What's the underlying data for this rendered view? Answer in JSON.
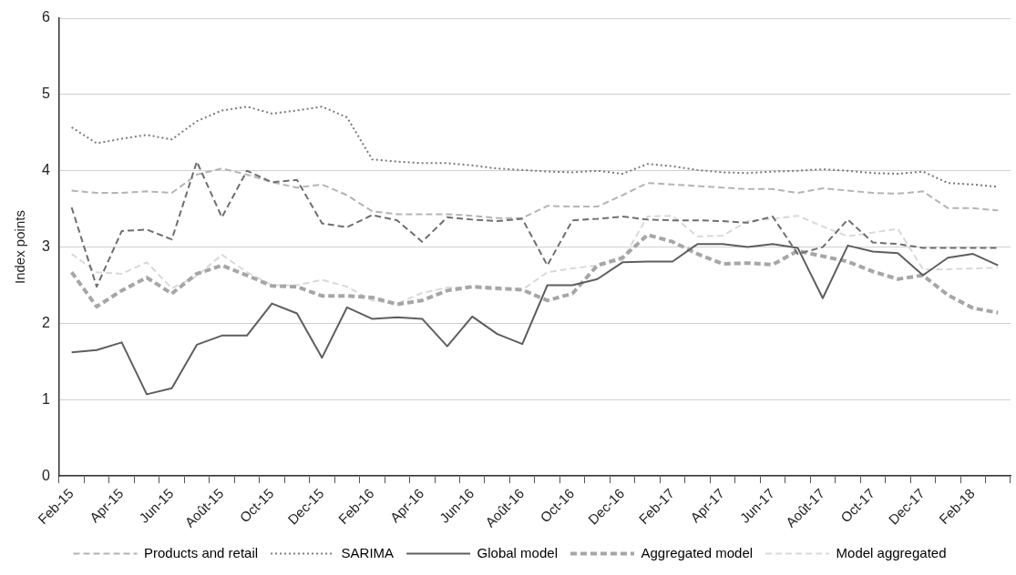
{
  "chart_data": {
    "type": "line",
    "ylabel": "Index points",
    "categories": [
      "Feb-15",
      null,
      "Apr-15",
      null,
      "Jun-15",
      null,
      "Août-15",
      null,
      "Oct-15",
      null,
      "Dec-15",
      null,
      "Feb-16",
      null,
      "Apr-16",
      null,
      "Jun-16",
      null,
      "Août-16",
      null,
      "Oct-16",
      null,
      "Dec-16",
      null,
      "Feb-17",
      null,
      "Apr-17",
      null,
      "Jun-17",
      null,
      "Août-17",
      null,
      "Oct-17",
      null,
      "Dec-17",
      null,
      "Feb-18",
      null
    ],
    "ylim": [
      0,
      6
    ],
    "yticks": [
      0,
      1,
      2,
      3,
      4,
      5,
      6
    ],
    "grid": "y",
    "legend": "bottom",
    "marker": "none",
    "series": [
      {
        "color": "#6e6e6e",
        "line_style": "dashed",
        "values": [
          3.52,
          2.48,
          3.21,
          3.23,
          3.1,
          4.12,
          3.39,
          4.0,
          3.85,
          3.88,
          3.31,
          3.26,
          3.42,
          3.35,
          3.07,
          3.39,
          3.36,
          3.34,
          3.37,
          2.76,
          3.35,
          3.37,
          3.4,
          3.36,
          3.35,
          3.35,
          3.34,
          3.32,
          3.4,
          2.91,
          3.0,
          3.36,
          3.06,
          3.04,
          2.99,
          2.99,
          2.99,
          2.99
        ]
      },
      {
        "name": "Products and retail",
        "color": "#b4b4b4",
        "line_style": "dashed",
        "values": [
          3.74,
          3.71,
          3.71,
          3.73,
          3.71,
          3.95,
          4.03,
          3.95,
          3.85,
          3.78,
          3.82,
          3.68,
          3.47,
          3.43,
          3.43,
          3.43,
          3.41,
          3.38,
          3.38,
          3.54,
          3.53,
          3.53,
          3.68,
          3.84,
          3.82,
          3.8,
          3.78,
          3.76,
          3.76,
          3.71,
          3.77,
          3.74,
          3.71,
          3.7,
          3.73,
          3.51,
          3.51,
          3.48
        ]
      },
      {
        "name": "SARIMA",
        "color": "#7a7a7a",
        "line_style": "dotted",
        "values": [
          4.57,
          4.36,
          4.42,
          4.47,
          4.41,
          4.65,
          4.79,
          4.84,
          4.75,
          4.79,
          4.84,
          4.7,
          4.15,
          4.12,
          4.1,
          4.1,
          4.07,
          4.03,
          4.01,
          3.99,
          3.98,
          4.0,
          3.96,
          4.09,
          4.06,
          4.01,
          3.98,
          3.97,
          3.99,
          4.0,
          4.02,
          4.0,
          3.97,
          3.96,
          3.99,
          3.84,
          3.82,
          3.79
        ]
      },
      {
        "name": "Global model",
        "color": "#5e5e5e",
        "line_style": "solid",
        "values": [
          1.62,
          1.65,
          1.75,
          1.07,
          1.15,
          1.72,
          1.84,
          1.84,
          2.26,
          2.13,
          1.55,
          2.21,
          2.06,
          2.08,
          2.06,
          1.7,
          2.09,
          1.86,
          1.73,
          2.5,
          2.5,
          2.58,
          2.8,
          2.81,
          2.81,
          3.04,
          3.04,
          3.0,
          3.04,
          2.99,
          2.33,
          3.02,
          2.94,
          2.92,
          2.63,
          2.86,
          2.91,
          2.76
        ]
      },
      {
        "name": "Aggregated model",
        "color": "#a6a6a6",
        "line_style": "dashed",
        "values": [
          2.67,
          2.22,
          2.43,
          2.6,
          2.39,
          2.65,
          2.76,
          2.63,
          2.49,
          2.48,
          2.36,
          2.36,
          2.34,
          2.25,
          2.3,
          2.43,
          2.48,
          2.46,
          2.44,
          2.3,
          2.39,
          2.76,
          2.86,
          3.16,
          3.07,
          2.91,
          2.78,
          2.79,
          2.77,
          2.95,
          2.88,
          2.81,
          2.68,
          2.58,
          2.63,
          2.37,
          2.2,
          2.14
        ]
      },
      {
        "name": "Model aggregated",
        "color": "#d9d9d9",
        "line_style": "dashed",
        "values": [
          2.91,
          2.67,
          2.65,
          2.8,
          2.46,
          2.62,
          2.9,
          2.67,
          2.5,
          2.5,
          2.57,
          2.48,
          2.3,
          2.26,
          2.4,
          2.47,
          2.47,
          2.44,
          2.44,
          2.67,
          2.72,
          2.76,
          2.83,
          3.4,
          3.41,
          3.14,
          3.15,
          3.34,
          3.37,
          3.41,
          3.27,
          3.14,
          3.19,
          3.24,
          2.71,
          2.71,
          2.72,
          2.73
        ]
      }
    ]
  }
}
